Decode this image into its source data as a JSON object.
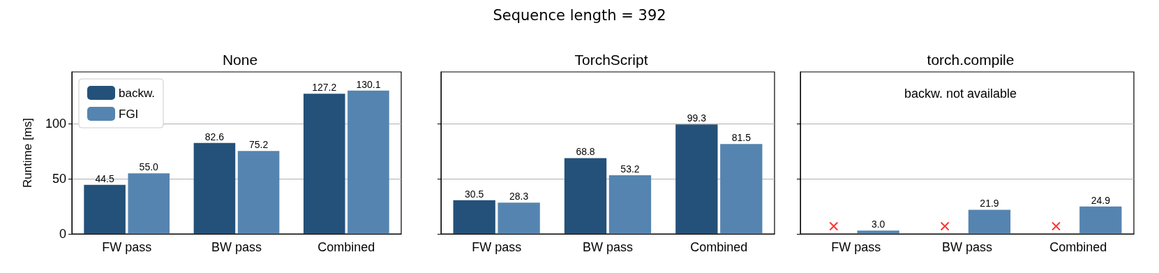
{
  "chart_data": [
    {
      "type": "bar",
      "title": "None",
      "ylabel": "Runtime [ms]",
      "annotations": [
        "Sequence length = 392"
      ],
      "categories": [
        "FW pass",
        "BW pass",
        "Combined"
      ],
      "ylim": [
        0,
        147
      ],
      "yticks": [
        0,
        50,
        100
      ],
      "grid": "y",
      "legend": "top left",
      "series": [
        {
          "name": "backw.",
          "color": "#245179",
          "values": [
            44.5,
            82.6,
            127.2
          ],
          "value_labels": [
            "44.5",
            "82.6",
            "127.2"
          ]
        },
        {
          "name": "FGI",
          "color": "#5584b0",
          "values": [
            55.0,
            75.2,
            130.1
          ],
          "value_labels": [
            "55.0",
            "75.2",
            "130.1"
          ]
        }
      ]
    },
    {
      "type": "bar",
      "title": "TorchScript",
      "categories": [
        "FW pass",
        "BW pass",
        "Combined"
      ],
      "ylim": [
        0,
        147
      ],
      "yticks": [
        0,
        50,
        100
      ],
      "grid": "y",
      "tick_labels": "x",
      "series": [
        {
          "color": "#245179",
          "values": [
            30.5,
            68.8,
            99.3
          ],
          "value_labels": [
            "30.5",
            "68.8",
            "99.3"
          ]
        },
        {
          "color": "#5584b0",
          "values": [
            28.3,
            53.2,
            81.5
          ],
          "value_labels": [
            "28.3",
            "53.2",
            "81.5"
          ]
        }
      ]
    },
    {
      "type": "bar",
      "title": "torch.compile",
      "categories": [
        "FW pass",
        "BW pass",
        "Combined"
      ],
      "ylim": [
        0,
        147
      ],
      "yticks": [
        0,
        50,
        100
      ],
      "grid": "y",
      "tick_labels": "x",
      "annotations": [
        "backw. not available"
      ],
      "series": [
        {
          "color": "#245179",
          "values": [
            null,
            null,
            null
          ]
        },
        {
          "type": "scatter",
          "marker": "cross",
          "color": "#ff0000",
          "x": [
            "FW pass",
            "BW pass",
            "Combined"
          ],
          "values": [
            7,
            7,
            7
          ]
        },
        {
          "color": "#5584b0",
          "values": [
            3.0,
            21.9,
            24.9
          ],
          "value_labels": [
            "3.0",
            "21.9",
            "24.9"
          ]
        }
      ]
    }
  ]
}
